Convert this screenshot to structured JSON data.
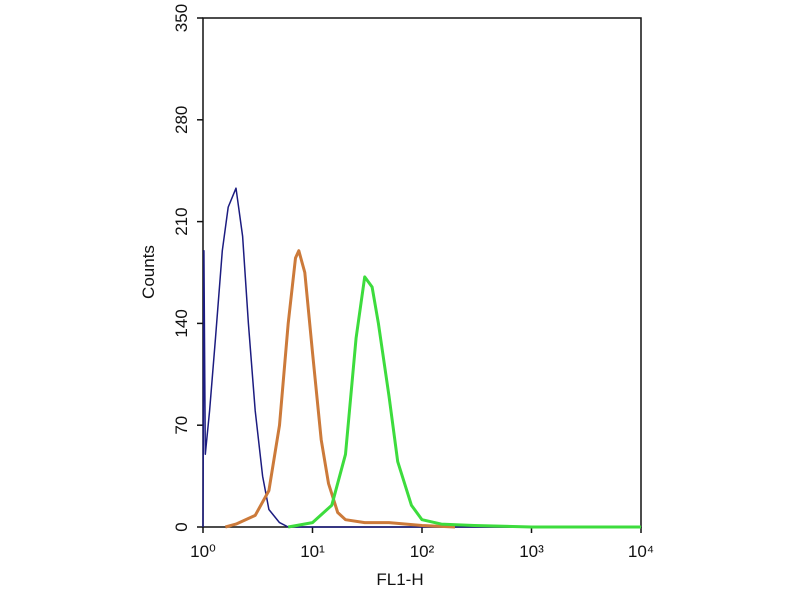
{
  "chart_data": {
    "type": "line",
    "xlabel": "FL1-H",
    "ylabel": "Counts",
    "xscale": "log",
    "xlim": [
      1,
      10000
    ],
    "ylim": [
      0,
      350
    ],
    "xticks": [
      {
        "value": 1,
        "label": "10⁰"
      },
      {
        "value": 10,
        "label": "10¹"
      },
      {
        "value": 100,
        "label": "10²"
      },
      {
        "value": 1000,
        "label": "10³"
      },
      {
        "value": 10000,
        "label": "10⁴"
      }
    ],
    "yticks": [
      0,
      70,
      140,
      210,
      280,
      350
    ],
    "series": [
      {
        "color": "#1c1c80",
        "x": [
          1,
          1.02,
          1.05,
          1.15,
          1.3,
          1.5,
          1.7,
          2.0,
          2.3,
          2.6,
          3.0,
          3.5,
          4.0,
          5,
          6,
          10,
          10000
        ],
        "values": [
          0,
          190,
          50,
          80,
          130,
          190,
          220,
          233,
          200,
          140,
          80,
          35,
          12,
          3,
          0,
          0,
          0
        ]
      },
      {
        "color": "#cc7a3a",
        "x": [
          1.6,
          2,
          3,
          4,
          5,
          6,
          7,
          7.5,
          8.5,
          10,
          12,
          14,
          17,
          20,
          30,
          50,
          100,
          200
        ],
        "values": [
          0,
          2,
          8,
          25,
          70,
          140,
          185,
          190,
          175,
          120,
          60,
          30,
          10,
          5,
          3,
          3,
          1,
          0
        ]
      },
      {
        "color": "#3ddc3d",
        "x": [
          6,
          10,
          15,
          20,
          25,
          30,
          35,
          40,
          50,
          60,
          80,
          100,
          150,
          300,
          1000,
          10000
        ],
        "values": [
          0,
          3,
          15,
          50,
          130,
          172,
          165,
          140,
          90,
          45,
          15,
          5,
          2,
          1,
          0,
          0
        ]
      }
    ]
  }
}
